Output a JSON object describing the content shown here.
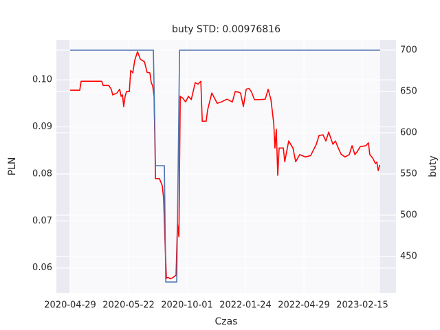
{
  "chart_data": {
    "type": "line",
    "title": "buty STD: 0.00976816",
    "x_label": "Czas",
    "y_label": "PLN",
    "y2_label": "buty",
    "xlim": [
      -5.9,
      139.4
    ],
    "xticks": [
      {
        "value": 0,
        "label": "2020-04-29"
      },
      {
        "value": 25,
        "label": "2020-05-22"
      },
      {
        "value": 50,
        "label": "2020-10-01"
      },
      {
        "value": 75,
        "label": "2022-01-24"
      },
      {
        "value": 100,
        "label": "2022-04-29"
      },
      {
        "value": 125,
        "label": "2023-02-15"
      }
    ],
    "ylim": [
      0.0547,
      0.1085
    ],
    "yticks": [
      0.06,
      0.07,
      0.08,
      0.09,
      {
        "value": 0.1,
        "label": "0.10"
      }
    ],
    "y2lim": [
      405.8,
      712.5
    ],
    "y2ticks": [
      450,
      500,
      550,
      600,
      650,
      700
    ],
    "grid": true,
    "series": [
      {
        "name": "PLN",
        "color": "#ff0000",
        "x": [
          0,
          4.1,
          4.7,
          13.5,
          14.1,
          16.5,
          17.6,
          18.2,
          20,
          21.2,
          21.8,
          22.4,
          22.9,
          23.5,
          24.1,
          25.3,
          25.9,
          26.8,
          27.6,
          28.8,
          30,
          31.8,
          32.9,
          34.1,
          34.7,
          35.3,
          35.9,
          36.5,
          38.2,
          39.4,
          40,
          40.6,
          41.2,
          41.8,
          42.9,
          44.1,
          45.3,
          45.9,
          46.5,
          47.1,
          48.2,
          49.4,
          50.6,
          51.8,
          53.5,
          54.7,
          55.9,
          56.5,
          58.2,
          58.8,
          60.6,
          62.9,
          64.7,
          67.1,
          69.4,
          70.6,
          71.8,
          72.9,
          74.1,
          75.3,
          76.5,
          77.6,
          78.8,
          81.2,
          83.5,
          84.7,
          85.9,
          87.1,
          87.6,
          88.2,
          88.8,
          89.4,
          91.2,
          91.8,
          93.5,
          95.3,
          96.5,
          98.2,
          100.6,
          102.9,
          105.3,
          106.5,
          108.2,
          109.4,
          110.6,
          112.4,
          113.5,
          114.7,
          115.9,
          117.6,
          119.4,
          120.6,
          121.8,
          122.9,
          124.1,
          126.5,
          127.6,
          128.2,
          129.4,
          130.6,
          131.2,
          131.8,
          132.4
        ],
        "values": [
          0.0978,
          0.0978,
          0.0997,
          0.0997,
          0.0988,
          0.0988,
          0.098,
          0.0968,
          0.0972,
          0.098,
          0.0965,
          0.0968,
          0.0943,
          0.0965,
          0.0975,
          0.0975,
          0.102,
          0.1015,
          0.1041,
          0.106,
          0.1044,
          0.1038,
          0.1016,
          0.1015,
          0.0994,
          0.0987,
          0.0965,
          0.079,
          0.079,
          0.0775,
          0.0746,
          0.0651,
          0.0578,
          0.058,
          0.0577,
          0.058,
          0.0585,
          0.0695,
          0.0666,
          0.0965,
          0.0961,
          0.0953,
          0.0965,
          0.0958,
          0.0994,
          0.0991,
          0.0997,
          0.0912,
          0.0912,
          0.0936,
          0.0972,
          0.095,
          0.0953,
          0.0959,
          0.0953,
          0.0975,
          0.0974,
          0.0972,
          0.0943,
          0.098,
          0.0982,
          0.0974,
          0.0958,
          0.0958,
          0.0959,
          0.098,
          0.0958,
          0.0907,
          0.0855,
          0.0895,
          0.0797,
          0.0855,
          0.0855,
          0.0826,
          0.087,
          0.0855,
          0.0826,
          0.0841,
          0.0836,
          0.0839,
          0.0863,
          0.0882,
          0.0883,
          0.087,
          0.0889,
          0.0863,
          0.087,
          0.0855,
          0.0842,
          0.0836,
          0.0841,
          0.086,
          0.0841,
          0.0848,
          0.0858,
          0.086,
          0.0866,
          0.0841,
          0.0834,
          0.0822,
          0.0825,
          0.0807,
          0.0819
        ]
      },
      {
        "name": "buty",
        "color": "#4c72b0",
        "axis": "y2",
        "x": [
          0,
          35.6,
          36.5,
          40.3,
          40.9,
          45.6,
          46.8,
          132.6
        ],
        "values": [
          700,
          700,
          560,
          560,
          419,
          419,
          700,
          700
        ]
      }
    ]
  }
}
